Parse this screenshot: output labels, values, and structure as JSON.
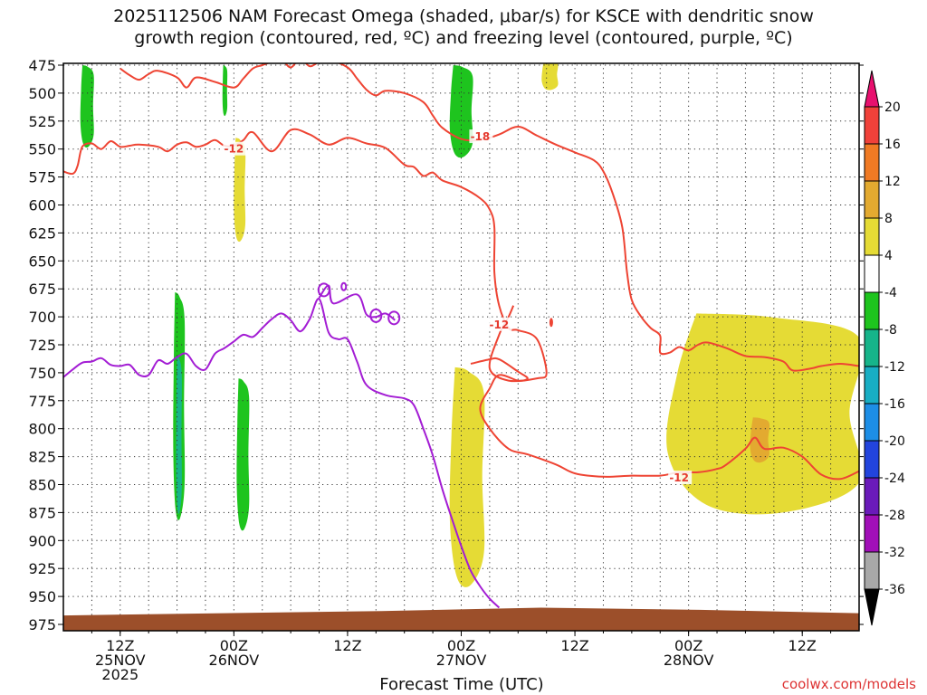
{
  "title": {
    "line1": "2025112506 NAM Forecast Omega (shaded, μbar/s) for KSCE with dendritic snow",
    "line2": "growth region (contoured, red, ºC) and freezing level (contoured, purple, ºC)"
  },
  "xlabel": "Forecast Time (UTC)",
  "credit": "coolwx.com/models",
  "chart_data": {
    "type": "heatmap",
    "title": "2025112506 NAM Forecast Omega (shaded, μbar/s) for KSCE with dendritic snow growth region (contoured, red, ºC) and freezing level (contoured, purple, ºC)",
    "xlabel": "Forecast Time (UTC)",
    "ylabel": "",
    "y_axis": {
      "unit": "hPa",
      "reversed": true,
      "range": [
        975,
        475
      ],
      "ticks": [
        475,
        500,
        525,
        550,
        575,
        600,
        625,
        650,
        675,
        700,
        725,
        750,
        775,
        800,
        825,
        850,
        875,
        900,
        925,
        950,
        975
      ]
    },
    "x_axis": {
      "range_hours": [
        0,
        84
      ],
      "ticks": [
        {
          "hour": 6,
          "labels": [
            "12Z",
            "25NOV",
            "2025"
          ]
        },
        {
          "hour": 18,
          "labels": [
            "00Z",
            "26NOV"
          ]
        },
        {
          "hour": 30,
          "labels": [
            "12Z"
          ]
        },
        {
          "hour": 42,
          "labels": [
            "00Z",
            "27NOV"
          ]
        },
        {
          "hour": 54,
          "labels": [
            "12Z"
          ]
        },
        {
          "hour": 66,
          "labels": [
            "00Z",
            "28NOV"
          ]
        },
        {
          "hour": 78,
          "labels": [
            "12Z"
          ]
        }
      ]
    },
    "grid": true,
    "colorbar": {
      "levels": [
        20,
        16,
        12,
        8,
        4,
        -4,
        -8,
        -12,
        -16,
        -20,
        -24,
        -28,
        -32,
        -36
      ],
      "colors": [
        "#e8106e",
        "#f0413a",
        "#f07a24",
        "#e3aa30",
        "#e5db35",
        "#ffffff",
        "#1ec41e",
        "#16b48a",
        "#18aec4",
        "#1d8ee6",
        "#2244dd",
        "#6a1aba",
        "#a10fb8",
        "#a8a8a8",
        "#000000"
      ]
    },
    "contour_labels": [
      {
        "label": "-12",
        "hour": 18,
        "hpa": 550
      },
      {
        "label": "-18",
        "hour": 44,
        "hpa": 539
      },
      {
        "label": "-12",
        "hour": 46,
        "hpa": 707
      },
      {
        "label": "-12",
        "hour": 65,
        "hpa": 844
      }
    ],
    "series": [
      {
        "role": "dendritic-upper-boundary",
        "color": "#ee4433",
        "points": [
          [
            0,
            570
          ],
          [
            1,
            572
          ],
          [
            1.5,
            565
          ],
          [
            2,
            548
          ],
          [
            3,
            545
          ],
          [
            4,
            550
          ],
          [
            5,
            543
          ],
          [
            6,
            548
          ],
          [
            7,
            547
          ],
          [
            8,
            546
          ],
          [
            10,
            548
          ],
          [
            11,
            552
          ],
          [
            12,
            546
          ],
          [
            13,
            544
          ],
          [
            14,
            548
          ],
          [
            15,
            546
          ],
          [
            16,
            542
          ],
          [
            17,
            547
          ],
          [
            18,
            547
          ],
          [
            19,
            542
          ],
          [
            20,
            535
          ],
          [
            22,
            552
          ],
          [
            24,
            533
          ],
          [
            26,
            537
          ],
          [
            28,
            546
          ],
          [
            30,
            540
          ],
          [
            32,
            545
          ],
          [
            34,
            549
          ],
          [
            36,
            564
          ],
          [
            37,
            566
          ],
          [
            38,
            574
          ],
          [
            39,
            571
          ],
          [
            40,
            578
          ],
          [
            42,
            584
          ],
          [
            44,
            594
          ],
          [
            45,
            604
          ],
          [
            45.5,
            620
          ],
          [
            45.5,
            660
          ],
          [
            46,
            690
          ],
          [
            47,
            710
          ],
          [
            48,
            712
          ],
          [
            50,
            720
          ],
          [
            51,
            750
          ],
          [
            50,
            755
          ],
          [
            47,
            757
          ],
          [
            45,
            746
          ],
          [
            46,
            716
          ],
          [
            47,
            700
          ],
          [
            47.5,
            690
          ]
        ]
      },
      {
        "role": "dendritic-inner-loop",
        "color": "#ee4433",
        "points": [
          [
            43,
            742
          ],
          [
            45,
            738
          ],
          [
            46,
            738
          ],
          [
            48,
            749
          ],
          [
            49,
            755
          ],
          [
            48,
            757
          ],
          [
            46,
            752
          ],
          [
            45,
            764
          ],
          [
            44,
            782
          ],
          [
            45,
            800
          ],
          [
            47,
            818
          ],
          [
            49,
            823
          ],
          [
            52,
            832
          ],
          [
            54,
            840
          ],
          [
            57,
            843
          ],
          [
            60,
            842
          ],
          [
            63,
            842
          ],
          [
            65,
            839
          ],
          [
            67,
            839
          ],
          [
            69,
            836
          ],
          [
            70,
            832
          ],
          [
            72,
            818
          ],
          [
            73,
            808
          ],
          [
            74,
            818
          ],
          [
            76,
            817
          ],
          [
            78,
            825
          ],
          [
            80,
            841
          ],
          [
            82,
            845
          ],
          [
            84,
            838
          ]
        ]
      },
      {
        "role": "dendritic-lower-boundary",
        "color": "#ee4433",
        "points": [
          [
            6,
            478
          ],
          [
            7,
            484
          ],
          [
            8,
            488
          ],
          [
            9,
            483
          ],
          [
            10,
            480
          ],
          [
            12,
            486
          ],
          [
            13,
            495
          ],
          [
            14,
            486
          ],
          [
            16,
            490
          ],
          [
            18,
            495
          ],
          [
            19,
            487
          ],
          [
            20,
            478
          ],
          [
            21,
            475
          ],
          [
            22,
            472
          ],
          [
            23,
            470
          ],
          [
            24,
            477
          ],
          [
            25,
            469
          ],
          [
            26,
            476
          ],
          [
            27,
            472
          ],
          [
            28,
            470
          ],
          [
            30,
            477
          ],
          [
            31,
            487
          ],
          [
            32,
            497
          ],
          [
            33,
            502
          ],
          [
            34,
            498
          ],
          [
            36,
            500
          ],
          [
            38,
            508
          ],
          [
            39,
            520
          ],
          [
            40,
            531
          ],
          [
            42,
            541
          ],
          [
            44,
            542
          ],
          [
            46,
            537
          ],
          [
            48,
            530
          ],
          [
            50,
            538
          ],
          [
            52,
            546
          ],
          [
            54,
            553
          ],
          [
            56,
            560
          ],
          [
            57,
            570
          ],
          [
            58,
            590
          ],
          [
            59,
            620
          ],
          [
            59.5,
            660
          ],
          [
            60,
            685
          ],
          [
            61,
            700
          ],
          [
            62,
            710
          ],
          [
            63,
            717
          ],
          [
            63,
            732
          ],
          [
            64,
            732
          ],
          [
            65,
            727
          ],
          [
            66,
            730
          ],
          [
            67,
            725
          ],
          [
            68,
            723
          ],
          [
            70,
            728
          ],
          [
            72,
            735
          ],
          [
            74,
            736
          ],
          [
            76,
            740
          ],
          [
            77,
            748
          ],
          [
            79,
            746
          ],
          [
            80,
            744
          ],
          [
            82,
            742
          ],
          [
            84,
            744
          ]
        ]
      },
      {
        "role": "freezing-level",
        "color": "#a31dd4",
        "points": [
          [
            0,
            754
          ],
          [
            1,
            747
          ],
          [
            2,
            741
          ],
          [
            3,
            740
          ],
          [
            4,
            737
          ],
          [
            5,
            743
          ],
          [
            6,
            744
          ],
          [
            7,
            743
          ],
          [
            8,
            752
          ],
          [
            9,
            752
          ],
          [
            10,
            739
          ],
          [
            11,
            742
          ],
          [
            12,
            736
          ],
          [
            13,
            733
          ],
          [
            14,
            744
          ],
          [
            15,
            747
          ],
          [
            16,
            733
          ],
          [
            17,
            728
          ],
          [
            18,
            722
          ],
          [
            19,
            716
          ],
          [
            20,
            718
          ],
          [
            21,
            710
          ],
          [
            22,
            702
          ],
          [
            23,
            697
          ],
          [
            24,
            703
          ],
          [
            25,
            713
          ],
          [
            26,
            702
          ],
          [
            27,
            684
          ],
          [
            28,
            714
          ],
          [
            29,
            720
          ],
          [
            30,
            720
          ],
          [
            31,
            740
          ],
          [
            32,
            761
          ],
          [
            34,
            770
          ],
          [
            36,
            773
          ],
          [
            37,
            779
          ],
          [
            38,
            800
          ],
          [
            39,
            824
          ],
          [
            40,
            854
          ],
          [
            41,
            880
          ],
          [
            42,
            905
          ],
          [
            43,
            927
          ],
          [
            44,
            941
          ],
          [
            45,
            952
          ],
          [
            46,
            960
          ]
        ]
      },
      {
        "role": "freezing-level-islands",
        "color": "#a31dd4",
        "points": [
          [
            27,
            683
          ],
          [
            28,
            672
          ],
          [
            28.5,
            688
          ],
          [
            31,
            680
          ],
          [
            32,
            698
          ],
          [
            33,
            700
          ],
          [
            34,
            697
          ],
          [
            35,
            703
          ]
        ]
      }
    ],
    "shaded_regions": [
      {
        "name": "green-475-550-early",
        "value": -6,
        "x_range": [
          1.8,
          3.2
        ],
        "p_range": [
          475,
          548
        ],
        "color": "#1ec41e"
      },
      {
        "name": "green-475-520-pre-00z",
        "value": -6,
        "x_range": [
          16.8,
          17.3
        ],
        "p_range": [
          475,
          520
        ],
        "color": "#1ec41e"
      },
      {
        "name": "green-475-555-26nov",
        "value": -6,
        "x_range": [
          40.8,
          43.2
        ],
        "p_range": [
          475,
          557
        ],
        "color": "#1ec41e"
      },
      {
        "name": "yellow-470-500",
        "value": 5,
        "x_range": [
          50.5,
          52.2
        ],
        "p_range": [
          470,
          497
        ],
        "color": "#e5db35"
      },
      {
        "name": "yellow-540-630",
        "value": 5,
        "x_range": [
          18,
          19.2
        ],
        "p_range": [
          540,
          632
        ],
        "color": "#e5db35"
      },
      {
        "name": "green-680-880",
        "value": -6,
        "x_range": [
          11.6,
          12.8
        ],
        "p_range": [
          678,
          880
        ],
        "color": "#1ec41e"
      },
      {
        "name": "teal-735-875",
        "value": -9,
        "x_range": [
          11.9,
          12.5
        ],
        "p_range": [
          735,
          875
        ],
        "color": "#16b48a"
      },
      {
        "name": "green-755-890-00z",
        "value": -6,
        "x_range": [
          18.3,
          19.6
        ],
        "p_range": [
          755,
          890
        ],
        "color": "#1ec41e"
      },
      {
        "name": "yellow-870-940-27nov",
        "value": 5,
        "x_range": [
          40.8,
          44.4
        ],
        "p_range": [
          745,
          940
        ],
        "color": "#e5db35"
      },
      {
        "name": "yellow-700-960-28nov",
        "value": 6,
        "x_range": [
          63.8,
          84
        ],
        "p_range": [
          697,
          875
        ],
        "color": "#e5db35"
      },
      {
        "name": "orange-790-830",
        "value": 9,
        "x_range": [
          72.5,
          74.5
        ],
        "p_range": [
          790,
          830
        ],
        "color": "#e3aa30"
      }
    ],
    "terrain": {
      "color": "#9c4f2a",
      "surface_hpa": [
        967,
        965,
        963,
        960,
        962,
        965
      ]
    }
  }
}
